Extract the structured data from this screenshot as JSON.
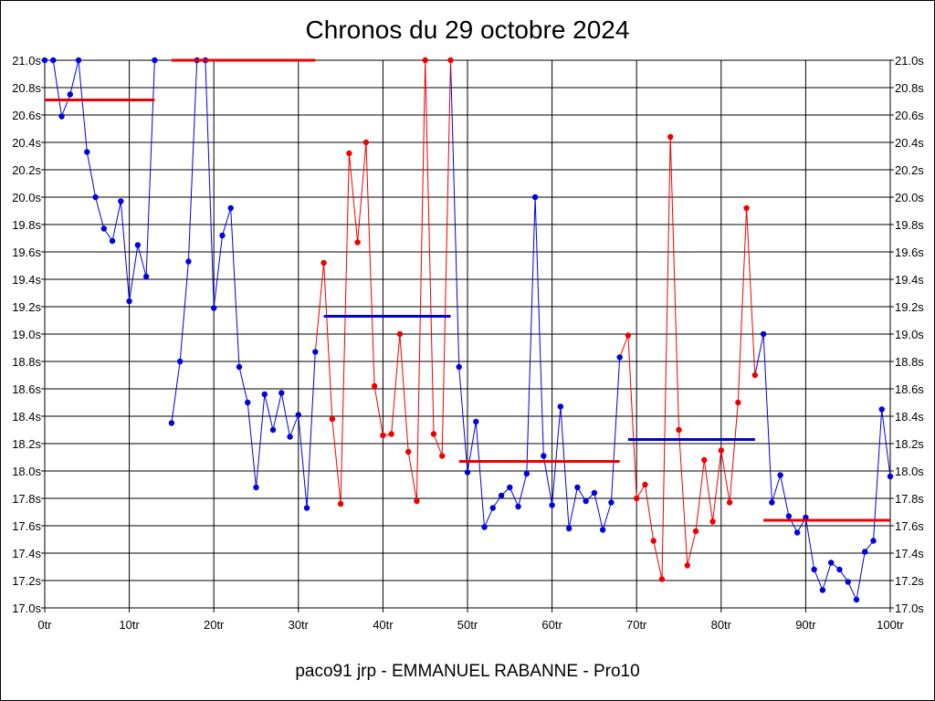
{
  "title": "Chronos du 29 octobre 2024",
  "subtitle": "paco91 jrp - EMMANUEL RABANNE - Pro10",
  "colors": {
    "blue": "#0000dd",
    "red": "#ee0000",
    "grid": "#000000"
  },
  "chart_data": {
    "type": "line",
    "xlim": [
      0,
      100
    ],
    "ylim": [
      17.0,
      21.0
    ],
    "x_ticks": [
      0,
      10,
      20,
      30,
      40,
      50,
      60,
      70,
      80,
      90,
      100
    ],
    "x_tick_labels": [
      "0tr",
      "10tr",
      "20tr",
      "30tr",
      "40tr",
      "50tr",
      "60tr",
      "70tr",
      "80tr",
      "90tr",
      "100tr"
    ],
    "y_ticks": [
      17.0,
      17.2,
      17.4,
      17.6,
      17.8,
      18.0,
      18.2,
      18.4,
      18.6,
      18.8,
      19.0,
      19.2,
      19.4,
      19.6,
      19.8,
      20.0,
      20.2,
      20.4,
      20.6,
      20.8,
      21.0
    ],
    "y_tick_labels": [
      "17.0s",
      "17.2s",
      "17.4s",
      "17.6s",
      "17.8s",
      "18.0s",
      "18.2s",
      "18.4s",
      "18.6s",
      "18.8s",
      "19.0s",
      "19.2s",
      "19.4s",
      "19.6s",
      "19.8s",
      "20.0s",
      "20.2s",
      "20.4s",
      "20.6s",
      "20.8s",
      "21.0s"
    ],
    "grid": true,
    "series": [
      {
        "color": "blue",
        "x": [
          0,
          1,
          2,
          3,
          4,
          5,
          6,
          7,
          8,
          9,
          10,
          11,
          12,
          13
        ],
        "y": [
          21.0,
          21.0,
          20.59,
          20.75,
          21.0,
          20.33,
          20.0,
          19.77,
          19.68,
          19.97,
          19.24,
          19.65,
          19.42,
          21.0
        ]
      },
      {
        "color": "blue",
        "x": [
          15,
          16,
          17,
          18,
          19,
          20,
          21,
          22,
          23,
          24,
          25,
          26,
          27,
          28,
          29,
          30,
          31,
          32
        ],
        "y": [
          18.35,
          18.8,
          19.53,
          21.0,
          21.0,
          19.19,
          19.72,
          19.92,
          18.76,
          18.5,
          17.88,
          18.56,
          18.3,
          18.57,
          18.25,
          18.41,
          17.73,
          18.87
        ]
      },
      {
        "color": "red",
        "x": [
          33,
          34,
          35,
          36,
          37,
          38,
          39,
          40,
          41,
          42,
          43,
          44,
          45,
          46,
          47,
          48
        ],
        "y": [
          19.52,
          18.38,
          17.76,
          20.32,
          19.67,
          20.4,
          18.62,
          18.26,
          18.27,
          19.0,
          18.14,
          17.78,
          21.0,
          18.27,
          18.11,
          21.0
        ]
      },
      {
        "color": "blue",
        "x": [
          49,
          50,
          51,
          52,
          53,
          54,
          55,
          56,
          57,
          58,
          59,
          60,
          61,
          62,
          63,
          64,
          65,
          66,
          67,
          68
        ],
        "y": [
          18.76,
          17.99,
          18.36,
          17.59,
          17.73,
          17.82,
          17.88,
          17.74,
          17.98,
          20.0,
          18.11,
          17.75,
          18.47,
          17.58,
          17.88,
          17.78,
          17.84,
          17.57,
          17.77,
          18.83
        ]
      },
      {
        "color": "red",
        "x": [
          69,
          70,
          71,
          72,
          73,
          74,
          75,
          76,
          77,
          78,
          79,
          80,
          81,
          82,
          83,
          84
        ],
        "y": [
          18.99,
          17.8,
          17.9,
          17.49,
          17.21,
          20.44,
          18.3,
          17.31,
          17.56,
          18.08,
          17.63,
          18.15,
          17.77,
          18.5,
          19.92,
          18.7
        ]
      },
      {
        "color": "blue",
        "x": [
          85,
          86,
          87,
          88,
          89,
          90,
          91,
          92,
          93,
          94,
          95,
          96,
          97,
          98,
          99,
          100
        ],
        "y": [
          19.0,
          17.77,
          17.97,
          17.67,
          17.55,
          17.66,
          17.28,
          17.13,
          17.33,
          17.28,
          17.19,
          17.06,
          17.41,
          17.49,
          18.45,
          17.96
        ]
      }
    ],
    "average_lines": [
      {
        "color": "red",
        "x_start": 0,
        "x_end": 13,
        "y": 20.71
      },
      {
        "color": "red",
        "x_start": 15,
        "x_end": 32,
        "y": 21.0
      },
      {
        "color": "blue",
        "x_start": 33,
        "x_end": 48,
        "y": 19.13
      },
      {
        "color": "red",
        "x_start": 49,
        "x_end": 68,
        "y": 18.07
      },
      {
        "color": "blue",
        "x_start": 69,
        "x_end": 84,
        "y": 18.23
      },
      {
        "color": "red",
        "x_start": 85,
        "x_end": 100,
        "y": 17.64
      }
    ]
  }
}
